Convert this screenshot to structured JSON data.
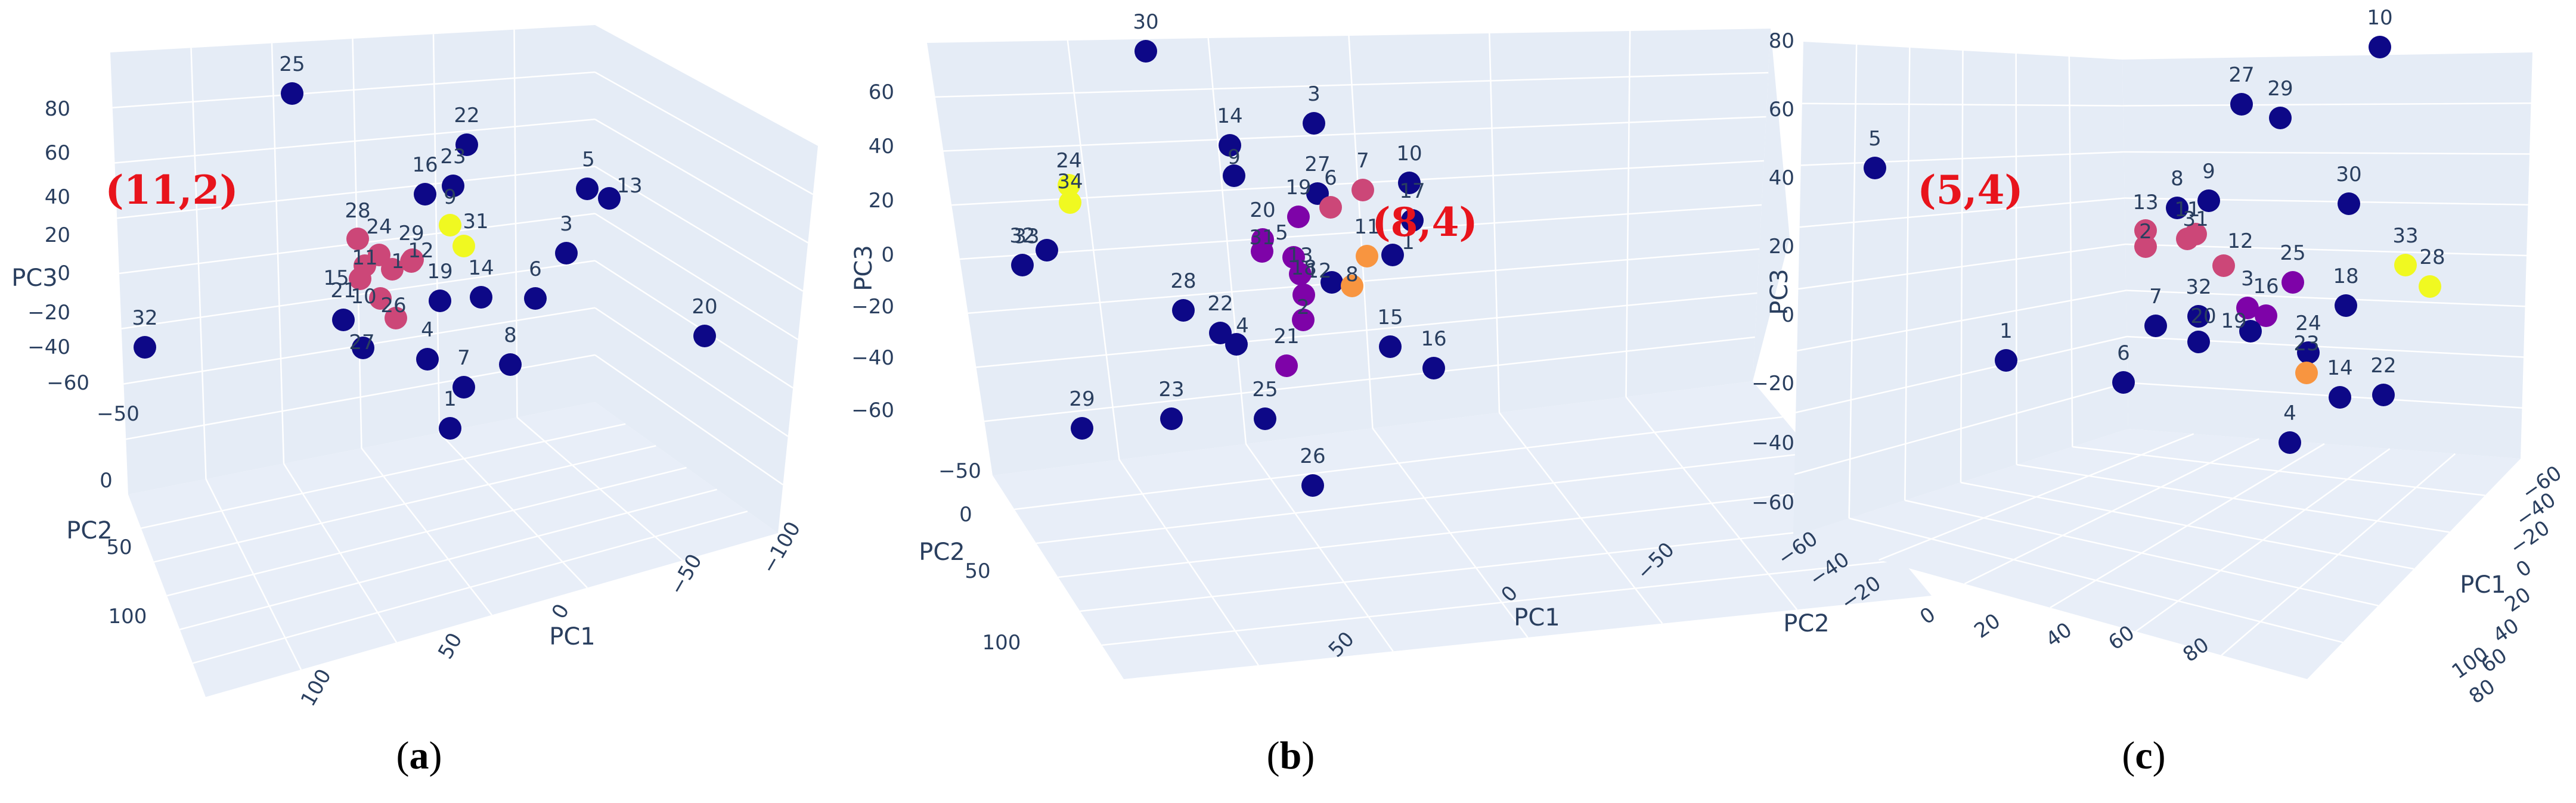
{
  "colors": {
    "pane_back": "#e5ecf6",
    "pane_floor": "#e8eef8",
    "grid": "#ffffff",
    "text": "#2a3f5f",
    "annotation": "#e8141c",
    "cluster": [
      "#0d0887",
      "#7e03a8",
      "#cc4778",
      "#f89540",
      "#f0f921"
    ]
  },
  "chart_data": [
    {
      "type": "scatter3d",
      "panel_label": "a",
      "annotation": "(11,2)",
      "axes": {
        "x": {
          "title": "PC1",
          "ticks": [
            "100",
            "50",
            "0",
            "−50",
            "−100"
          ]
        },
        "y": {
          "title": "PC2",
          "ticks": [
            "−50",
            "0",
            "50",
            "100"
          ]
        },
        "z": {
          "title": "PC3",
          "ticks": [
            "80",
            "60",
            "40",
            "20",
            "0",
            "−20",
            "−40",
            "−60"
          ]
        }
      },
      "points": [
        {
          "label": "25",
          "cluster": 0
        },
        {
          "label": "22",
          "cluster": 0
        },
        {
          "label": "16",
          "cluster": 0
        },
        {
          "label": "23",
          "cluster": 0
        },
        {
          "label": "5",
          "cluster": 0
        },
        {
          "label": "13",
          "cluster": 0
        },
        {
          "label": "28",
          "cluster": 2
        },
        {
          "label": "24",
          "cluster": 2
        },
        {
          "label": "29",
          "cluster": 2
        },
        {
          "label": "9",
          "cluster": 4
        },
        {
          "label": "31",
          "cluster": 4
        },
        {
          "label": "11",
          "cluster": 2
        },
        {
          "label": "15",
          "cluster": 2
        },
        {
          "label": "17",
          "cluster": 2
        },
        {
          "label": "12",
          "cluster": 2
        },
        {
          "label": "10",
          "cluster": 2
        },
        {
          "label": "26",
          "cluster": 2
        },
        {
          "label": "19",
          "cluster": 0
        },
        {
          "label": "14",
          "cluster": 0
        },
        {
          "label": "21",
          "cluster": 0
        },
        {
          "label": "27",
          "cluster": 0
        },
        {
          "label": "3",
          "cluster": 0
        },
        {
          "label": "6",
          "cluster": 0
        },
        {
          "label": "4",
          "cluster": 0
        },
        {
          "label": "8",
          "cluster": 0
        },
        {
          "label": "7",
          "cluster": 0
        },
        {
          "label": "1",
          "cluster": 0
        },
        {
          "label": "32",
          "cluster": 0
        },
        {
          "label": "20",
          "cluster": 0
        }
      ]
    },
    {
      "type": "scatter3d",
      "panel_label": "b",
      "annotation": "(8,4)",
      "axes": {
        "x": {
          "title": "PC1",
          "ticks": [
            "50",
            "0",
            "−50"
          ]
        },
        "y": {
          "title": "PC2",
          "ticks": [
            "−50",
            "0",
            "50",
            "100"
          ]
        },
        "z": {
          "title": "PC3",
          "ticks": [
            "60",
            "40",
            "20",
            "0",
            "−20",
            "−40",
            "−60"
          ]
        }
      },
      "points": [
        {
          "label": "30",
          "cluster": 0
        },
        {
          "label": "3",
          "cluster": 0
        },
        {
          "label": "14",
          "cluster": 0
        },
        {
          "label": "9",
          "cluster": 0
        },
        {
          "label": "24",
          "cluster": 4
        },
        {
          "label": "34",
          "cluster": 4
        },
        {
          "label": "33",
          "cluster": 0
        },
        {
          "label": "32",
          "cluster": 0
        },
        {
          "label": "27",
          "cluster": 0
        },
        {
          "label": "6",
          "cluster": 2
        },
        {
          "label": "7",
          "cluster": 2
        },
        {
          "label": "10",
          "cluster": 0
        },
        {
          "label": "17",
          "cluster": 0
        },
        {
          "label": "19",
          "cluster": 1
        },
        {
          "label": "20",
          "cluster": 1
        },
        {
          "label": "31",
          "cluster": 1
        },
        {
          "label": "5",
          "cluster": 1
        },
        {
          "label": "11",
          "cluster": 3
        },
        {
          "label": "1",
          "cluster": 0
        },
        {
          "label": "12",
          "cluster": 0
        },
        {
          "label": "8",
          "cluster": 3
        },
        {
          "label": "13",
          "cluster": 1
        },
        {
          "label": "18",
          "cluster": 1
        },
        {
          "label": "2",
          "cluster": 1
        },
        {
          "label": "28",
          "cluster": 0
        },
        {
          "label": "22",
          "cluster": 0
        },
        {
          "label": "4",
          "cluster": 0
        },
        {
          "label": "21",
          "cluster": 1
        },
        {
          "label": "15",
          "cluster": 0
        },
        {
          "label": "16",
          "cluster": 0
        },
        {
          "label": "29",
          "cluster": 0
        },
        {
          "label": "23",
          "cluster": 0
        },
        {
          "label": "25",
          "cluster": 0
        },
        {
          "label": "26",
          "cluster": 0
        }
      ]
    },
    {
      "type": "scatter3d",
      "panel_label": "c",
      "annotation": "(5,4)",
      "axes": {
        "x": {
          "title": "PC1",
          "ticks": [
            "−60",
            "−40",
            "−20",
            "0",
            "20",
            "40",
            "60",
            "80",
            "100"
          ]
        },
        "y": {
          "title": "PC2",
          "ticks": [
            "−60",
            "−40",
            "−20",
            "0",
            "20",
            "40",
            "60",
            "80"
          ]
        },
        "z": {
          "title": "PC3",
          "ticks": [
            "80",
            "60",
            "40",
            "20",
            "0",
            "−20",
            "−40",
            "−60"
          ]
        }
      },
      "points": [
        {
          "label": "10",
          "cluster": 0
        },
        {
          "label": "27",
          "cluster": 0
        },
        {
          "label": "29",
          "cluster": 0
        },
        {
          "label": "5",
          "cluster": 0
        },
        {
          "label": "30",
          "cluster": 0
        },
        {
          "label": "8",
          "cluster": 0
        },
        {
          "label": "9",
          "cluster": 0
        },
        {
          "label": "13",
          "cluster": 2
        },
        {
          "label": "11",
          "cluster": 2
        },
        {
          "label": "2",
          "cluster": 2
        },
        {
          "label": "31",
          "cluster": 2
        },
        {
          "label": "12",
          "cluster": 2
        },
        {
          "label": "33",
          "cluster": 4
        },
        {
          "label": "28",
          "cluster": 4
        },
        {
          "label": "25",
          "cluster": 1
        },
        {
          "label": "18",
          "cluster": 0
        },
        {
          "label": "3",
          "cluster": 1
        },
        {
          "label": "16",
          "cluster": 1
        },
        {
          "label": "1",
          "cluster": 0
        },
        {
          "label": "7",
          "cluster": 0
        },
        {
          "label": "32",
          "cluster": 0
        },
        {
          "label": "19",
          "cluster": 0
        },
        {
          "label": "20",
          "cluster": 0
        },
        {
          "label": "24",
          "cluster": 0
        },
        {
          "label": "6",
          "cluster": 0
        },
        {
          "label": "23",
          "cluster": 3
        },
        {
          "label": "14",
          "cluster": 0
        },
        {
          "label": "22",
          "cluster": 0
        },
        {
          "label": "4",
          "cluster": 0
        }
      ]
    }
  ]
}
